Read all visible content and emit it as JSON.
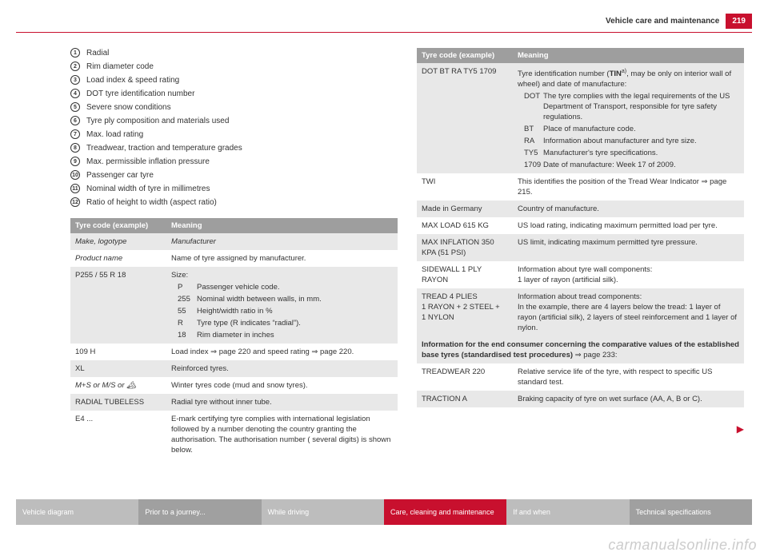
{
  "header": {
    "title": "Vehicle care and maintenance",
    "page": "219"
  },
  "defs": [
    "Radial",
    "Rim diameter code",
    "Load index & speed rating",
    "DOT tyre identification number",
    "Severe snow conditions",
    "Tyre ply composition and materials used",
    "Max. load rating",
    "Treadwear, traction and temperature grades",
    "Max. permissible inflation pressure",
    "Passenger car tyre",
    "Nominal width of tyre in millimetres",
    "Ratio of height to width (aspect ratio)"
  ],
  "left_table": {
    "h1": "Tyre code (example)",
    "h2": "Meaning",
    "rows": {
      "make_k": "Make, logotype",
      "make_v": "Manufacturer",
      "product_k": "Product name",
      "product_v": "Name of tyre assigned by manufacturer.",
      "size_k": "P255 / 55 R 18",
      "size_v": "Size:",
      "size_sub": [
        {
          "k": "P",
          "v": "Passenger vehicle code."
        },
        {
          "k": "255",
          "v": "Nominal width between walls, in mm."
        },
        {
          "k": "55",
          "v": "Height/width ratio in %"
        },
        {
          "k": "R",
          "v": "Tyre type (R indicates “radial”)."
        },
        {
          "k": "18",
          "v": "Rim diameter in inches"
        }
      ],
      "load_k": "109 H",
      "load_v": "Load index ⇒ page 220 and speed rating ⇒ page 220.",
      "xl_k": "XL",
      "xl_v": "Reinforced tyres.",
      "ms_k": "M+S or M/S or 🏔",
      "ms_v": "Winter tyres code (mud and snow tyres).",
      "radial_k": "RADIAL TUBELESS",
      "radial_v": "Radial tyre without inner tube.",
      "e4_k": "E4 ...",
      "e4_v": "E-mark certifying tyre complies with international legislation followed by a number denoting the country granting the authorisation. The authorisation number ( several digits) is shown below."
    }
  },
  "right_table": {
    "h1": "Tyre code (example)",
    "h2": "Meaning",
    "dot_k": "DOT BT RA TY5 1709",
    "dot_v_pre": "Tyre identification number (",
    "dot_tin": "TIN",
    "dot_sup": "a)",
    "dot_v_post": ", may be only on interior wall of wheel) and date of manufacture:",
    "dot_sub": [
      {
        "k": "DOT",
        "v": "The tyre complies with the legal requirements of the US Department of Transport, responsible for tyre safety regulations."
      },
      {
        "k": "BT",
        "v": "Place of manufacture code."
      },
      {
        "k": "RA",
        "v": "Information about manufacturer and tyre size."
      },
      {
        "k": "TY5",
        "v": "Manufacturer's tyre specifications."
      },
      {
        "k": "1709",
        "v": "Date of manufacture: Week 17 of 2009."
      }
    ],
    "twi_k": "TWI",
    "twi_v": "This identifies the position of the Tread Wear Indicator ⇒ page 215.",
    "made_k": "Made in Germany",
    "made_v": "Country of manufacture.",
    "max_k": "MAX LOAD 615 KG",
    "max_v": "US load rating, indicating maximum permitted load per tyre.",
    "infl_k": "MAX INFLATION 350 KPA (51 PSI)",
    "infl_v": "US limit, indicating maximum permitted tyre pressure.",
    "side_k": "SIDEWALL 1 PLY RAYON",
    "side_v1": "Information about tyre wall components:",
    "side_v2": "1 layer of rayon (artificial silk).",
    "tread_k": "TREAD 4 PLIES\n1 RAYON + 2 STEEL +\n1 NYLON",
    "tread_v1": "Information about tread components:",
    "tread_v2": "In the example, there are 4 layers below the tread: 1 layer of rayon (artificial silk), 2 layers of steel reinforcement and 1 layer of nylon.",
    "info1": "Information for the end consumer concerning the comparative values of the established base tyres (standardised test procedures)",
    "info_ref": " ⇒ page 233:",
    "tw_k": "TREADWEAR 220",
    "tw_v": "Relative service life of the tyre, with respect to specific US standard test.",
    "tr_k": "TRACTION A",
    "tr_v": "Braking capacity of tyre on wet surface (AA, A, B or C)."
  },
  "footer": {
    "tabs": [
      {
        "label": "Vehicle diagram",
        "bg": "#bdbdbd",
        "color": "#ffffff"
      },
      {
        "label": "Prior to a journey...",
        "bg": "#a0a0a0",
        "color": "#ffffff"
      },
      {
        "label": "While driving",
        "bg": "#bdbdbd",
        "color": "#ffffff"
      },
      {
        "label": "Care, cleaning and maintenance",
        "bg": "#c8102e",
        "color": "#ffffff"
      },
      {
        "label": "If and when",
        "bg": "#bdbdbd",
        "color": "#ffffff"
      },
      {
        "label": "Technical specifications",
        "bg": "#a0a0a0",
        "color": "#ffffff"
      }
    ]
  },
  "watermark": "carmanualsonline.info",
  "cont_arrow": "▶"
}
